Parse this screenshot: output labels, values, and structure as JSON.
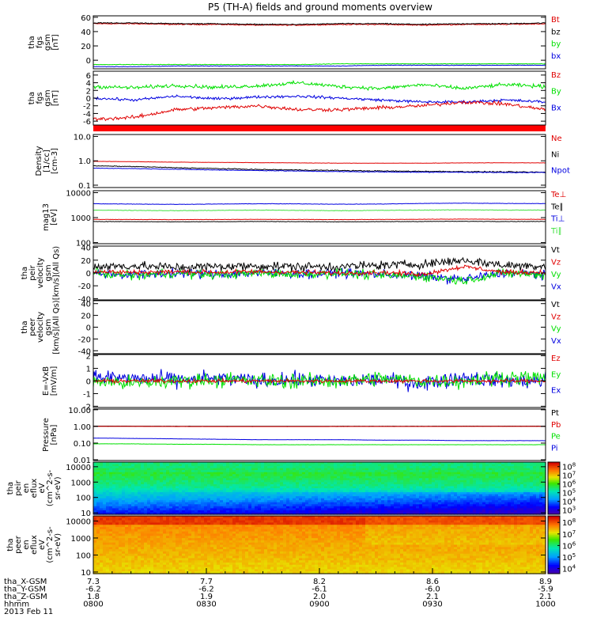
{
  "title": "P5 (TH-A) fields and ground moments overview",
  "date_label": "2013 Feb 11",
  "colors": {
    "black": "#000000",
    "red": "#e00000",
    "green": "#00e000",
    "blue": "#0000e0",
    "lime": "#40e040"
  },
  "chart_data": [
    {
      "type": "line",
      "ylabel": [
        "tha",
        "fgs",
        "gsm",
        "[nT]"
      ],
      "ylim": [
        -12,
        62
      ],
      "yticks": [
        0,
        20,
        40,
        60
      ],
      "yticklabels": [
        "0",
        "20",
        "40",
        "60"
      ],
      "legend": [
        "Bt",
        "bz",
        "by",
        "bx"
      ],
      "series": [
        {
          "name": "Bt",
          "color": "red",
          "y": [
            51,
            51,
            50,
            50,
            49,
            49,
            50,
            50,
            49,
            50,
            50,
            51
          ],
          "noise": 0.6
        },
        {
          "name": "bz",
          "color": "black",
          "y": [
            52,
            52,
            51,
            51,
            50,
            50,
            51,
            51,
            50,
            51,
            51,
            52
          ],
          "noise": 0.6
        },
        {
          "name": "by",
          "color": "green",
          "y": [
            -6,
            -6,
            -6,
            -6,
            -6,
            -6,
            -5,
            -5,
            -5,
            -5,
            -5,
            -5
          ],
          "noise": 0.3
        },
        {
          "name": "bx",
          "color": "blue",
          "y": [
            -9,
            -9,
            -8,
            -8,
            -8,
            -8,
            -8,
            -7,
            -7,
            -7,
            -7,
            -7
          ],
          "noise": 0.3
        }
      ]
    },
    {
      "type": "line",
      "ylabel": [
        "tha",
        "fgs",
        "gsm",
        "[nT]"
      ],
      "ylim": [
        -7,
        7
      ],
      "yticks": [
        -6,
        -4,
        -2,
        0,
        2,
        4,
        6
      ],
      "yticklabels": [
        "-6",
        "-4",
        "-2",
        "0",
        "2",
        "4",
        "6"
      ],
      "legend": [
        "Bz",
        "By",
        "Bx"
      ],
      "series": [
        {
          "name": "By",
          "color": "green",
          "y": [
            3,
            2.7,
            3.3,
            2.8,
            3.2,
            4,
            3,
            2.5,
            3.5,
            2.5,
            3.5,
            3
          ],
          "noise": 0.4
        },
        {
          "name": "Bx",
          "color": "blue",
          "y": [
            0,
            -0.5,
            0.5,
            -0.2,
            0.3,
            0.5,
            0,
            -0.5,
            -1,
            -1,
            -0.5,
            -1
          ],
          "noise": 0.3
        },
        {
          "name": "Bz",
          "color": "red",
          "y": [
            -5.5,
            -5,
            -3,
            -2.5,
            -2,
            -3,
            -3,
            -2.5,
            -2,
            -1,
            -1.5,
            -3
          ],
          "noise": 0.4
        }
      ]
    },
    {
      "type": "line",
      "ylabel": [
        "Density",
        "[1/cc]",
        "[cm-3]"
      ],
      "yscale": "log",
      "ylim": [
        0.08,
        12
      ],
      "yticks": [
        0.1,
        1.0,
        10.0
      ],
      "yticklabels": [
        "0.1",
        "1.0",
        "10.0"
      ],
      "legend": [
        "Ne",
        "Ni",
        "Npot"
      ],
      "series": [
        {
          "name": "Ne",
          "color": "red",
          "y": [
            0.95,
            0.92,
            0.88,
            0.86,
            0.84,
            0.82,
            0.8,
            0.8,
            0.8,
            0.82,
            0.83,
            0.82
          ],
          "noise": 0.01
        },
        {
          "name": "Ni",
          "color": "black",
          "y": [
            0.62,
            0.58,
            0.52,
            0.48,
            0.44,
            0.42,
            0.4,
            0.38,
            0.37,
            0.36,
            0.35,
            0.34
          ],
          "noise": 0.015
        },
        {
          "name": "Npot",
          "color": "blue",
          "y": [
            0.5,
            0.48,
            0.45,
            0.42,
            0.4,
            0.38,
            0.36,
            0.35,
            0.34,
            0.34,
            0.33,
            0.33
          ],
          "noise": 0.01
        }
      ]
    },
    {
      "type": "line",
      "ylabel": [
        "mag13",
        "[eV]"
      ],
      "yscale": "log",
      "ylim": [
        90,
        12000
      ],
      "yticks": [
        100,
        1000,
        10000
      ],
      "yticklabels": [
        "100",
        "1000",
        "10000"
      ],
      "legend": [
        "Te⊥",
        "Te∥",
        "Ti⊥",
        "Ti∥"
      ],
      "series": [
        {
          "name": "Te∥",
          "color": "black",
          "y": [
            700,
            690,
            680,
            690,
            700,
            690,
            680,
            690,
            700,
            710,
            700,
            700
          ],
          "noise": 12
        },
        {
          "name": "Te⊥",
          "color": "red",
          "y": [
            850,
            840,
            830,
            840,
            850,
            840,
            830,
            840,
            860,
            870,
            860,
            850
          ],
          "noise": 12
        },
        {
          "name": "Ti∥",
          "color": "lime",
          "y": [
            2000,
            1950,
            1900,
            1950,
            2000,
            1950,
            1900,
            1950,
            2000,
            2050,
            2000,
            2000
          ],
          "noise": 40
        },
        {
          "name": "Ti⊥",
          "color": "blue",
          "y": [
            3600,
            3500,
            3400,
            3500,
            3600,
            3550,
            3450,
            3500,
            3700,
            3800,
            3700,
            3650
          ],
          "noise": 60
        }
      ]
    },
    {
      "type": "line",
      "ylabel": [
        "tha",
        "peir",
        "velocity",
        "gsm",
        "[km/s](All Qs)"
      ],
      "ylim": [
        -42,
        42
      ],
      "yticks": [
        -40,
        -20,
        0,
        20,
        40
      ],
      "yticklabels": [
        "-40",
        "-20",
        "0",
        "20",
        "40"
      ],
      "legend": [
        "Vt",
        "Vz",
        "Vy",
        "Vx"
      ],
      "series": [
        {
          "name": "Vx",
          "color": "blue",
          "y": [
            0,
            -3,
            0,
            -2,
            0,
            -1,
            0,
            -2,
            -5,
            -10,
            0,
            -2
          ],
          "noise": 6
        },
        {
          "name": "Vy",
          "color": "green",
          "y": [
            0,
            -4,
            0,
            -3,
            0,
            -2,
            0,
            -4,
            -5,
            -12,
            0,
            -3
          ],
          "noise": 6
        },
        {
          "name": "Vt",
          "color": "black",
          "y": [
            10,
            11,
            9,
            10,
            11,
            10,
            10,
            12,
            14,
            20,
            12,
            11
          ],
          "noise": 6
        },
        {
          "name": "Vz",
          "color": "red",
          "y": [
            2,
            1,
            2,
            1,
            2,
            1,
            0,
            1,
            -2,
            10,
            1,
            1
          ],
          "noise": 3
        }
      ]
    },
    {
      "type": "line",
      "ylabel": [
        "tha",
        "peer",
        "velocity",
        "gsm",
        "[km/s](All Qs)"
      ],
      "ylim": [
        -45,
        45
      ],
      "yticks": [
        -40,
        -20,
        0,
        20,
        40
      ],
      "yticklabels": [
        "-40",
        "-20",
        "0",
        "20",
        "40"
      ],
      "legend": [
        "Vt",
        "Vz",
        "Vy",
        "Vx"
      ],
      "series": []
    },
    {
      "type": "line",
      "ylabel": [
        "E=-VxB",
        "[mV/m]"
      ],
      "ylim": [
        -2.1,
        2.1
      ],
      "yticks": [
        -2,
        -1,
        0,
        1,
        2
      ],
      "yticklabels": [
        "-2",
        "-1",
        "0",
        "1",
        "2"
      ],
      "legend": [
        "Ez",
        "Ey",
        "Ex"
      ],
      "series": [
        {
          "name": "Ex",
          "color": "blue",
          "y": [
            0.3,
            0.2,
            0.1,
            0.2,
            0,
            0.1,
            0,
            0.1,
            -0.2,
            0.3,
            0,
            0
          ],
          "noise": 0.5
        },
        {
          "name": "Ey",
          "color": "green",
          "y": [
            0,
            -0.2,
            0,
            0.1,
            0,
            0,
            0,
            0.2,
            0,
            0,
            0.3,
            0.2
          ],
          "noise": 0.5
        },
        {
          "name": "Ez",
          "color": "red",
          "y": [
            0,
            0,
            0,
            0,
            0,
            0,
            0,
            0,
            0,
            0,
            0,
            0
          ],
          "noise": 0.12
        }
      ]
    },
    {
      "type": "line",
      "ylabel": [
        "Pressure",
        "[nPa]"
      ],
      "yscale": "log",
      "ylim": [
        0.009,
        11
      ],
      "yticks": [
        0.01,
        0.1,
        1.0,
        10.0
      ],
      "yticklabels": [
        "0.01",
        "0.10",
        "1.00",
        "10.00"
      ],
      "legend": [
        "Pt",
        "Pb",
        "Pe",
        "Pi"
      ],
      "series": [
        {
          "name": "Pt",
          "color": "black",
          "y": [
            1.05,
            1.04,
            1.03,
            1.02,
            1.02,
            1.02,
            1.03,
            1.03,
            1.03,
            1.04,
            1.04,
            1.04
          ],
          "noise": 0.004
        },
        {
          "name": "Pb",
          "color": "red",
          "y": [
            1.0,
            1.0,
            0.99,
            0.98,
            0.98,
            0.98,
            0.99,
            0.99,
            0.99,
            1.0,
            1.0,
            1.0
          ],
          "noise": 0.004
        },
        {
          "name": "Pi",
          "color": "blue",
          "y": [
            0.2,
            0.19,
            0.18,
            0.17,
            0.16,
            0.16,
            0.16,
            0.15,
            0.15,
            0.14,
            0.14,
            0.14
          ],
          "noise": 0.002
        },
        {
          "name": "Pe",
          "color": "green",
          "y": [
            0.09,
            0.09,
            0.085,
            0.085,
            0.08,
            0.08,
            0.08,
            0.08,
            0.08,
            0.08,
            0.08,
            0.08
          ],
          "noise": 0.001
        }
      ]
    },
    {
      "type": "heatmap",
      "ylabel": [
        "tha",
        "peir",
        "en",
        "eflux",
        "eV",
        "(cm^2-s-",
        "sr-eV)"
      ],
      "yscale": "log",
      "ylim": [
        8,
        20000
      ],
      "yticks": [
        10,
        100,
        1000,
        10000
      ],
      "yticklabels": [
        "10",
        "100",
        "1000",
        "10000"
      ],
      "colorbar": {
        "ticks": [
          "10^3",
          "10^4",
          "10^5",
          "10^6",
          "10^7",
          "10^8"
        ],
        "min": 3,
        "max": 8
      }
    },
    {
      "type": "heatmap",
      "ylabel": [
        "tha",
        "peer",
        "en",
        "eflux",
        "eV",
        "(cm^2-s-",
        "sr-eV)"
      ],
      "yscale": "log",
      "ylim": [
        8,
        20000
      ],
      "yticks": [
        10,
        100,
        1000,
        10000
      ],
      "yticklabels": [
        "10",
        "100",
        "1000",
        "10000"
      ],
      "colorbar": {
        "ticks": [
          "10^4",
          "10^5",
          "10^6",
          "10^7",
          "10^8"
        ],
        "min": 3.5,
        "max": 8.3
      }
    }
  ],
  "xaxis": {
    "tick_times": [
      "0800",
      "0830",
      "0900",
      "0930",
      "1000"
    ],
    "rows": [
      {
        "label": "tha_X-GSM",
        "values": [
          "7.3",
          "7.7",
          "8.2",
          "8.6",
          "8.9"
        ]
      },
      {
        "label": "tha_Y-GSM",
        "values": [
          "-6.2",
          "-6.2",
          "-6.1",
          "-6.0",
          "-5.9"
        ]
      },
      {
        "label": "tha_Z-GSM",
        "values": [
          "1.8",
          "1.9",
          "2.0",
          "2.1",
          "2.1"
        ]
      },
      {
        "label": "hhmm",
        "values": [
          "0800",
          "0830",
          "0900",
          "0930",
          "1000"
        ]
      }
    ]
  }
}
